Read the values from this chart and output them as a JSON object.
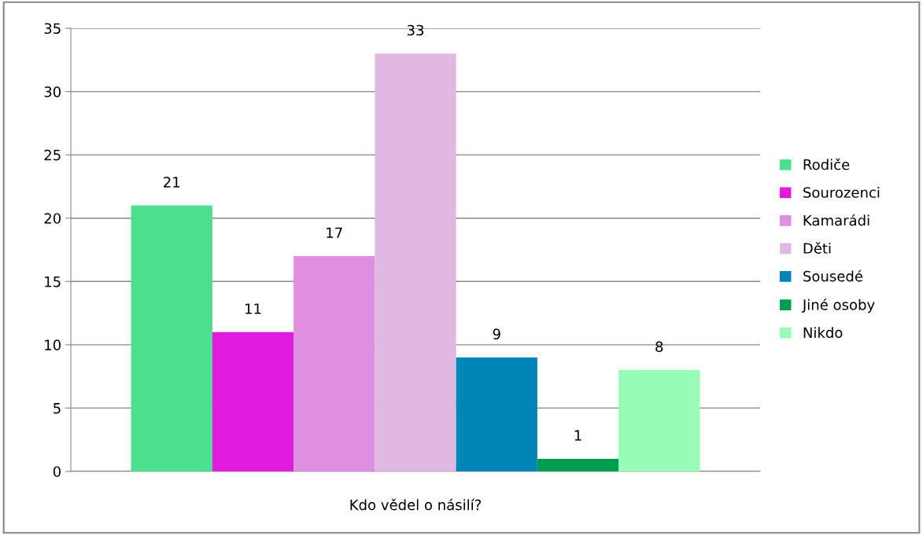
{
  "chart_data": {
    "type": "bar",
    "xlabel": "Kdo vědel o násilí?",
    "categories": [
      null
    ],
    "series": [
      {
        "name": "Rodiče",
        "color": "#4ae08e",
        "values": [
          21
        ]
      },
      {
        "name": "Sourozenci",
        "color": "#e01adf",
        "values": [
          11
        ]
      },
      {
        "name": "Kamarádi",
        "color": "#e08ee0",
        "values": [
          17
        ]
      },
      {
        "name": "Děti",
        "color": "#e0b8e0",
        "values": [
          33
        ]
      },
      {
        "name": "Sousedé",
        "color": "#0085b8",
        "values": [
          9
        ]
      },
      {
        "name": "Jiné osoby",
        "color": "#009e4e",
        "values": [
          1
        ]
      },
      {
        "name": "Nikdo",
        "color": "#96fcb8",
        "values": [
          8
        ]
      }
    ],
    "ylim": [
      0,
      35
    ],
    "yticks": [
      0,
      5,
      10,
      15,
      20,
      25,
      30,
      35
    ],
    "grid": "y",
    "legend": "right",
    "data_labels": true
  }
}
